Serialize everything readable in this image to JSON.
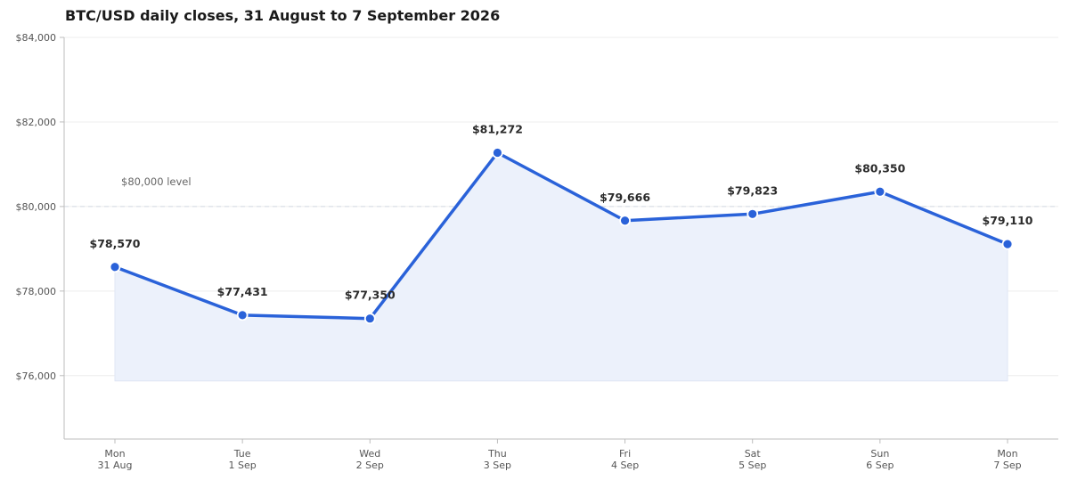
{
  "chart_data": {
    "type": "line",
    "title": "BTC/USD daily closes, 31 August to 7 September 2026",
    "xlabel": "",
    "ylabel": "",
    "categories": [
      [
        "Mon",
        "31 Aug"
      ],
      [
        "Tue",
        "1 Sep"
      ],
      [
        "Wed",
        "2 Sep"
      ],
      [
        "Thu",
        "3 Sep"
      ],
      [
        "Fri",
        "4 Sep"
      ],
      [
        "Sat",
        "5 Sep"
      ],
      [
        "Sun",
        "6 Sep"
      ],
      [
        "Mon",
        "7 Sep"
      ]
    ],
    "series": [
      {
        "values": [
          78570,
          77431,
          77350,
          81272,
          79666,
          79823,
          80350,
          79110
        ],
        "labels": [
          "$78,570",
          "$77,431",
          "$77,350",
          "$81,272",
          "$79,666",
          "$79,823",
          "$80,350",
          "$79,110"
        ],
        "color": "#2a62d9",
        "fill_color": "#ecf1fb",
        "area": true
      }
    ],
    "ylim": [
      74500,
      84000
    ],
    "yticks": [
      76000,
      78000,
      80000,
      82000,
      84000
    ],
    "ytick_labels": [
      "$76,000",
      "$78,000",
      "$80,000",
      "$82,000",
      "$84,000"
    ],
    "reference_line": {
      "value": 80000,
      "label": "$80,000 level",
      "style": "dashed"
    },
    "grid": true,
    "legend": "none"
  }
}
